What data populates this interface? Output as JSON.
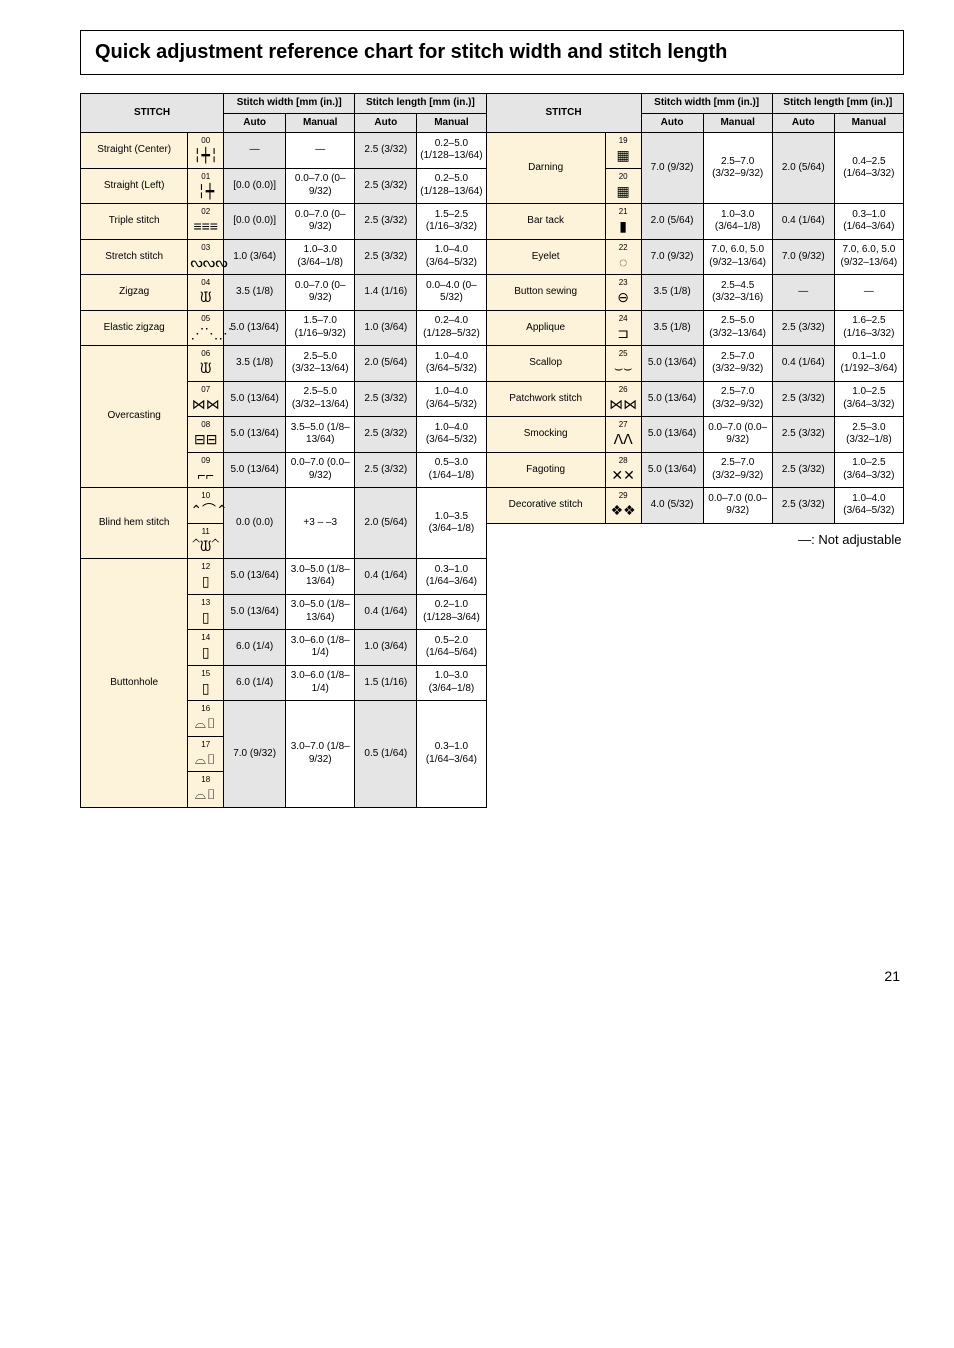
{
  "title": "Quick adjustment reference chart for stitch width and stitch length",
  "headers": {
    "stitch": "STITCH",
    "width": "Stitch width [mm (in.)]",
    "length": "Stitch length [mm (in.)]",
    "auto": "Auto",
    "manual": "Manual"
  },
  "note": "—: Not adjustable",
  "page_number": "21",
  "colors": {
    "header_bg": "#e5e5e5",
    "stitch_bg": "#fdf3db",
    "border": "#000000",
    "page_bg": "#ffffff"
  },
  "left": [
    {
      "name": "Straight (Center)",
      "rowspan": 1,
      "items": [
        {
          "num": "00",
          "glyph": "╎┿╎",
          "wa": "—",
          "wm": "—",
          "la": "2.5 (3/32)",
          "lm": "0.2–5.0 (1/128–13/64)"
        }
      ]
    },
    {
      "name": "Straight (Left)",
      "rowspan": 1,
      "items": [
        {
          "num": "01",
          "glyph": "╎┿",
          "wa": "[0.0 (0.0)]",
          "wm": "0.0–7.0 (0–9/32)",
          "la": "2.5 (3/32)",
          "lm": "0.2–5.0 (1/128–13/64)"
        }
      ]
    },
    {
      "name": "Triple stitch",
      "rowspan": 1,
      "items": [
        {
          "num": "02",
          "glyph": "≡≡≡",
          "wa": "[0.0 (0.0)]",
          "wm": "0.0–7.0 (0–9/32)",
          "la": "2.5 (3/32)",
          "lm": "1.5–2.5 (1/16–3/32)"
        }
      ]
    },
    {
      "name": "Stretch stitch",
      "rowspan": 1,
      "items": [
        {
          "num": "03",
          "glyph": "ᔓᔓᔓ",
          "wa": "1.0 (3/64)",
          "wm": "1.0–3.0 (3/64–1/8)",
          "la": "2.5 (3/32)",
          "lm": "1.0–4.0 (3/64–5/32)"
        }
      ]
    },
    {
      "name": "Zigzag",
      "rowspan": 1,
      "items": [
        {
          "num": "04",
          "glyph": "ᙡ",
          "wa": "3.5 (1/8)",
          "wm": "0.0–7.0 (0–9/32)",
          "la": "1.4 (1/16)",
          "lm": "0.0–4.0 (0–5/32)"
        }
      ]
    },
    {
      "name": "Elastic zigzag",
      "rowspan": 1,
      "items": [
        {
          "num": "05",
          "glyph": "⋰⋱⋰",
          "wa": "5.0 (13/64)",
          "wm": "1.5–7.0 (1/16–9/32)",
          "la": "1.0 (3/64)",
          "lm": "0.2–4.0 (1/128–5/32)"
        }
      ]
    },
    {
      "name": "Overcasting",
      "rowspan": 4,
      "items": [
        {
          "num": "06",
          "glyph": "ᙡ",
          "wa": "3.5 (1/8)",
          "wm": "2.5–5.0 (3/32–13/64)",
          "la": "2.0 (5/64)",
          "lm": "1.0–4.0 (3/64–5/32)"
        },
        {
          "num": "07",
          "glyph": "⋈⋈",
          "wa": "5.0 (13/64)",
          "wm": "2.5–5.0 (3/32–13/64)",
          "la": "2.5 (3/32)",
          "lm": "1.0–4.0 (3/64–5/32)"
        },
        {
          "num": "08",
          "glyph": "⊟⊟",
          "wa": "5.0 (13/64)",
          "wm": "3.5–5.0 (1/8–13/64)",
          "la": "2.5 (3/32)",
          "lm": "1.0–4.0 (3/64–5/32)"
        },
        {
          "num": "09",
          "glyph": "⌐⌐",
          "wa": "5.0 (13/64)",
          "wm": "0.0–7.0 (0.0–9/32)",
          "la": "2.5 (3/32)",
          "lm": "0.5–3.0 (1/64–1/8)"
        }
      ]
    },
    {
      "name": "Blind hem stitch",
      "rowspan": 2,
      "items": [
        {
          "num": "10",
          "glyph": "⌃⌒⌃",
          "wa": "0.0 (0.0)",
          "wm": "+3 – –3",
          "la": "2.0 (5/64)",
          "lm": "1.0–3.5 (3/64–1/8)",
          "wa_rs": 2,
          "wm_rs": 2,
          "la_rs": 2,
          "lm_rs": 2
        },
        {
          "num": "11",
          "glyph": "⌃ᙡ⌃"
        }
      ]
    },
    {
      "name": "Buttonhole",
      "rowspan": 7,
      "items": [
        {
          "num": "12",
          "glyph": "▯",
          "wa": "5.0 (13/64)",
          "wm": "3.0–5.0 (1/8–13/64)",
          "la": "0.4 (1/64)",
          "lm": "0.3–1.0 (1/64–3/64)"
        },
        {
          "num": "13",
          "glyph": "▯",
          "wa": "5.0 (13/64)",
          "wm": "3.0–5.0 (1/8–13/64)",
          "la": "0.4 (1/64)",
          "lm": "0.2–1.0 (1/128–3/64)"
        },
        {
          "num": "14",
          "glyph": "▯",
          "wa": "6.0 (1/4)",
          "wm": "3.0–6.0 (1/8–1/4)",
          "la": "1.0 (3/64)",
          "lm": "0.5–2.0 (1/64–5/64)"
        },
        {
          "num": "15",
          "glyph": "▯",
          "wa": "6.0 (1/4)",
          "wm": "3.0–6.0 (1/8–1/4)",
          "la": "1.5 (1/16)",
          "lm": "1.0–3.0 (3/64–1/8)"
        },
        {
          "num": "16",
          "glyph": "⌓▯",
          "wa": "7.0 (9/32)",
          "wm": "3.0–7.0 (1/8–9/32)",
          "la": "0.5 (1/64)",
          "lm": "0.3–1.0 (1/64–3/64)",
          "wa_rs": 3,
          "wm_rs": 3,
          "la_rs": 3,
          "lm_rs": 3
        },
        {
          "num": "17",
          "glyph": "⌓▯"
        },
        {
          "num": "18",
          "glyph": "⌓▯"
        }
      ]
    }
  ],
  "right": [
    {
      "name": "Darning",
      "rowspan": 2,
      "items": [
        {
          "num": "19",
          "glyph": "▦",
          "wa": "7.0 (9/32)",
          "wm": "2.5–7.0 (3/32–9/32)",
          "la": "2.0 (5/64)",
          "lm": "0.4–2.5 (1/64–3/32)",
          "wa_rs": 2,
          "wm_rs": 2,
          "la_rs": 2,
          "lm_rs": 2
        },
        {
          "num": "20",
          "glyph": "▦"
        }
      ]
    },
    {
      "name": "Bar tack",
      "rowspan": 1,
      "items": [
        {
          "num": "21",
          "glyph": "▮",
          "wa": "2.0 (5/64)",
          "wm": "1.0–3.0 (3/64–1/8)",
          "la": "0.4 (1/64)",
          "lm": "0.3–1.0 (1/64–3/64)"
        }
      ]
    },
    {
      "name": "Eyelet",
      "rowspan": 1,
      "items": [
        {
          "num": "22",
          "glyph": "◌",
          "wa": "7.0 (9/32)",
          "wm": "7.0, 6.0, 5.0 (9/32–13/64)",
          "la": "7.0 (9/32)",
          "lm": "7.0, 6.0, 5.0 (9/32–13/64)"
        }
      ]
    },
    {
      "name": "Button sewing",
      "rowspan": 1,
      "items": [
        {
          "num": "23",
          "glyph": "⊖",
          "wa": "3.5 (1/8)",
          "wm": "2.5–4.5 (3/32–3/16)",
          "la": "—",
          "lm": "—"
        }
      ]
    },
    {
      "name": "Applique",
      "rowspan": 1,
      "items": [
        {
          "num": "24",
          "glyph": "⊐",
          "wa": "3.5 (1/8)",
          "wm": "2.5–5.0 (3/32–13/64)",
          "la": "2.5 (3/32)",
          "lm": "1.6–2.5 (1/16–3/32)"
        }
      ]
    },
    {
      "name": "Scallop",
      "rowspan": 1,
      "items": [
        {
          "num": "25",
          "glyph": "⌣⌣",
          "wa": "5.0 (13/64)",
          "wm": "2.5–7.0 (3/32–9/32)",
          "la": "0.4 (1/64)",
          "lm": "0.1–1.0 (1/192–3/64)"
        }
      ]
    },
    {
      "name": "Patchwork stitch",
      "rowspan": 1,
      "items": [
        {
          "num": "26",
          "glyph": "⋈⋈",
          "wa": "5.0 (13/64)",
          "wm": "2.5–7.0 (3/32–9/32)",
          "la": "2.5 (3/32)",
          "lm": "1.0–2.5 (3/64–3/32)"
        }
      ]
    },
    {
      "name": "Smocking",
      "rowspan": 1,
      "items": [
        {
          "num": "27",
          "glyph": "ᐱᐱ",
          "wa": "5.0 (13/64)",
          "wm": "0.0–7.0 (0.0–9/32)",
          "la": "2.5 (3/32)",
          "lm": "2.5–3.0 (3/32–1/8)"
        }
      ]
    },
    {
      "name": "Fagoting",
      "rowspan": 1,
      "items": [
        {
          "num": "28",
          "glyph": "✕✕",
          "wa": "5.0 (13/64)",
          "wm": "2.5–7.0 (3/32–9/32)",
          "la": "2.5 (3/32)",
          "lm": "1.0–2.5 (3/64–3/32)"
        }
      ]
    },
    {
      "name": "Decorative stitch",
      "rowspan": 1,
      "items": [
        {
          "num": "29",
          "glyph": "❖❖",
          "wa": "4.0 (5/32)",
          "wm": "0.0–7.0 (0.0–9/32)",
          "la": "2.5 (3/32)",
          "lm": "1.0–4.0 (3/64–5/32)"
        }
      ]
    }
  ]
}
